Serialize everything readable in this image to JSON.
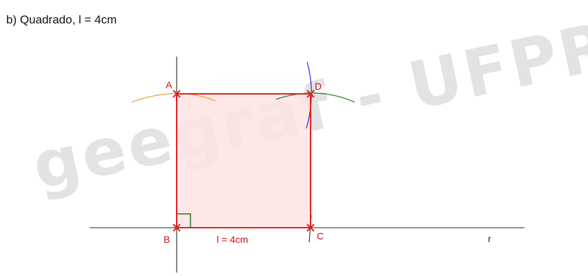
{
  "title": "b) Quadrado, l = 4cm",
  "watermark": "geegraf - UFPR",
  "points": {
    "A": "A",
    "B": "B",
    "C": "C",
    "D": "D"
  },
  "line_label": "r",
  "side_label": "l = 4cm",
  "colors": {
    "square_stroke": "#e02020",
    "square_fill": "#fde3e3",
    "construction_lines": "#222222",
    "arc_A": "#f0a030",
    "arc_D": "#2e7d32",
    "arc_C": "#3333dd",
    "right_angle_marker": "#2e7d32",
    "labels": "#d01010"
  }
}
